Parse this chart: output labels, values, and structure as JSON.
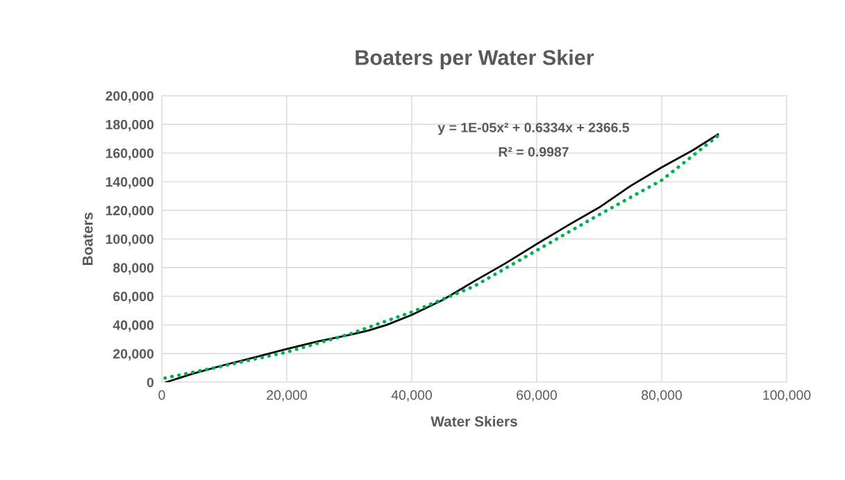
{
  "chart_data": {
    "type": "line",
    "title": "Boaters per Water Skier",
    "xlabel": "Water Skiers",
    "ylabel": "Boaters",
    "series": [
      {
        "color": "#000000",
        "line_style": "solid",
        "x": [
          700,
          5000,
          10000,
          15000,
          20000,
          25000,
          30000,
          33000,
          36000,
          40000,
          45000,
          50000,
          55000,
          60000,
          65000,
          70000,
          75000,
          80000,
          85000,
          89000
        ],
        "values": [
          0,
          6000,
          12000,
          17500,
          23200,
          28500,
          33000,
          36000,
          40000,
          47000,
          57500,
          70500,
          83000,
          96500,
          109500,
          122000,
          137000,
          150000,
          162000,
          173000
        ]
      },
      {
        "color": "#00b050",
        "line_style": "dotted",
        "x": [
          500,
          10000,
          20000,
          30000,
          40000,
          50000,
          60000,
          70000,
          80000,
          89000
        ],
        "values": [
          2900,
          11500,
          21000,
          33500,
          49000,
          67000,
          92000,
          117000,
          141000,
          172000
        ]
      }
    ],
    "xlim": [
      0,
      100000
    ],
    "ylim": [
      0,
      200000
    ],
    "xticks": [
      0,
      {
        "value": 20000,
        "label": "20,000"
      },
      {
        "value": 40000,
        "label": "40,000"
      },
      {
        "value": 60000,
        "label": "60,000"
      },
      {
        "value": 80000,
        "label": "80,000"
      },
      {
        "value": 100000,
        "label": "100,000"
      }
    ],
    "yticks": [
      0,
      {
        "value": 20000,
        "label": "20,000"
      },
      {
        "value": 40000,
        "label": "40,000"
      },
      {
        "value": 60000,
        "label": "60,000"
      },
      {
        "value": 80000,
        "label": "80,000"
      },
      {
        "value": 100000,
        "label": "100,000"
      },
      {
        "value": 120000,
        "label": "120,000"
      },
      {
        "value": 140000,
        "label": "140,000"
      },
      {
        "value": 160000,
        "label": "160,000"
      },
      {
        "value": 180000,
        "label": "180,000"
      },
      {
        "value": 200000,
        "label": "200,000"
      }
    ],
    "grid": true,
    "annotations": [
      "y = 1E-05x² + 0.6334x + 2366.5",
      "R² = 0.9987"
    ]
  }
}
